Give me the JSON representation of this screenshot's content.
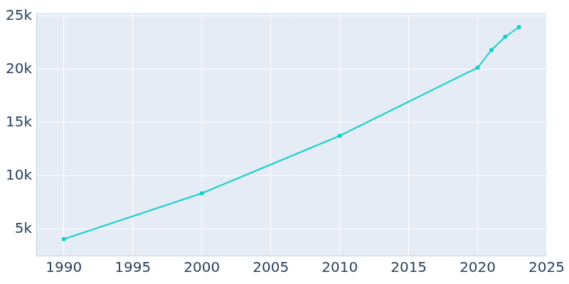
{
  "chart_data": {
    "type": "line",
    "x": [
      1990,
      2000,
      2010,
      2020,
      2021,
      2022,
      2023
    ],
    "values": [
      4050,
      8350,
      13750,
      20150,
      21800,
      23050,
      23950
    ],
    "color": "#17cfc9",
    "marker": "circle",
    "xlim": [
      1988,
      2025
    ],
    "xticks": [
      1990,
      1995,
      2000,
      2005,
      2010,
      2015,
      2020,
      2025
    ],
    "ylim": [
      2500,
      25300
    ],
    "yticks": [
      {
        "value": 5000,
        "label": "5k"
      },
      {
        "value": 10000,
        "label": "10k"
      },
      {
        "value": 15000,
        "label": "15k"
      },
      {
        "value": 20000,
        "label": "20k"
      },
      {
        "value": 25000,
        "label": "25k"
      }
    ],
    "grid": true
  }
}
